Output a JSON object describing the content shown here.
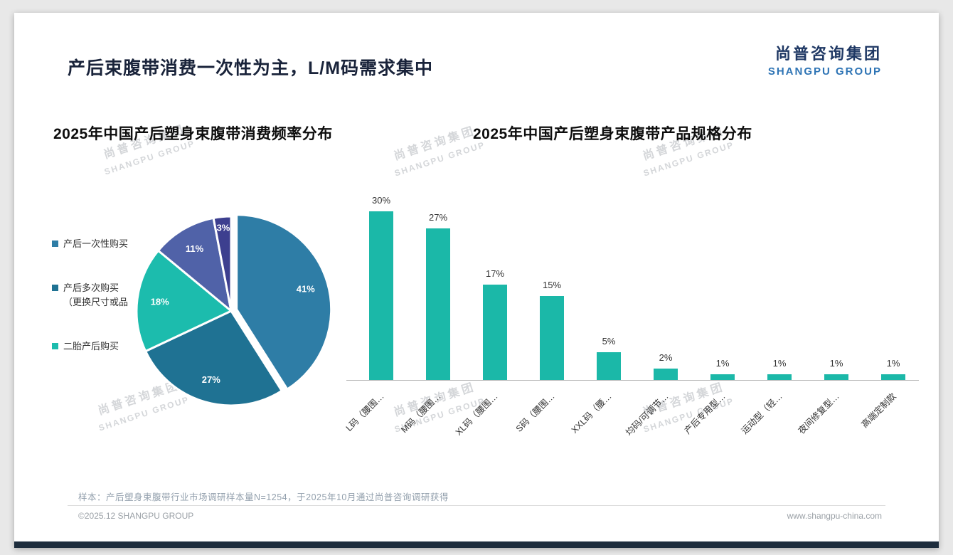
{
  "page": {
    "title": "产后束腹带消费一次性为主，L/M码需求集中",
    "logo": {
      "cn": "尚普咨询集团",
      "en": "SHANGPU GROUP"
    },
    "watermark": {
      "cn": "尚普咨询集团",
      "en": "SHANGPU GROUP"
    },
    "footer": {
      "note": "样本：产后塑身束腹带行业市场调研样本量N=1254，于2025年10月通过尚普咨询调研获得",
      "copyright": "©2025.12 SHANGPU GROUP",
      "website": "www.shangpu-china.com"
    }
  },
  "chart_data": [
    {
      "type": "pie",
      "title": "2025年中国产后塑身束腹带消费频率分布",
      "slices": [
        {
          "label": "产后一次性购买",
          "value": 41,
          "color": "#2e7da6"
        },
        {
          "label": "产后多次购买（更换尺寸或品",
          "value": 27,
          "color": "#1f7293"
        },
        {
          "label": "二胎产后购买",
          "value": 18,
          "color": "#1cbcad"
        },
        {
          "label": "",
          "value": 11,
          "color": "#5062a8"
        },
        {
          "label": "",
          "value": 3,
          "color": "#3d3f8f"
        }
      ],
      "legend": [
        {
          "label": "产后一次性购买",
          "color": "#2e7da6"
        },
        {
          "label": "产后多次购买\n（更换尺寸或品",
          "color": "#1f7293"
        },
        {
          "label": "二胎产后购买",
          "color": "#1cbcad"
        }
      ],
      "label_format": "percent"
    },
    {
      "type": "bar",
      "title": "2025年中国产后塑身束腹带产品规格分布",
      "categories": [
        "L码（腰围…",
        "M码（腰围…",
        "XL码（腰围…",
        "S码（腰围…",
        "XXL码（腰…",
        "均码/可调节…",
        "产后专用型…",
        "运动型（轻…",
        "夜间修复型…",
        "高端定制款"
      ],
      "values": [
        30,
        27,
        17,
        15,
        5,
        2,
        1,
        1,
        1,
        1
      ],
      "value_suffix": "%",
      "bar_color": "#1bb8a8",
      "ylim": [
        0,
        35
      ],
      "grid": false,
      "legend_position": "none"
    }
  ]
}
